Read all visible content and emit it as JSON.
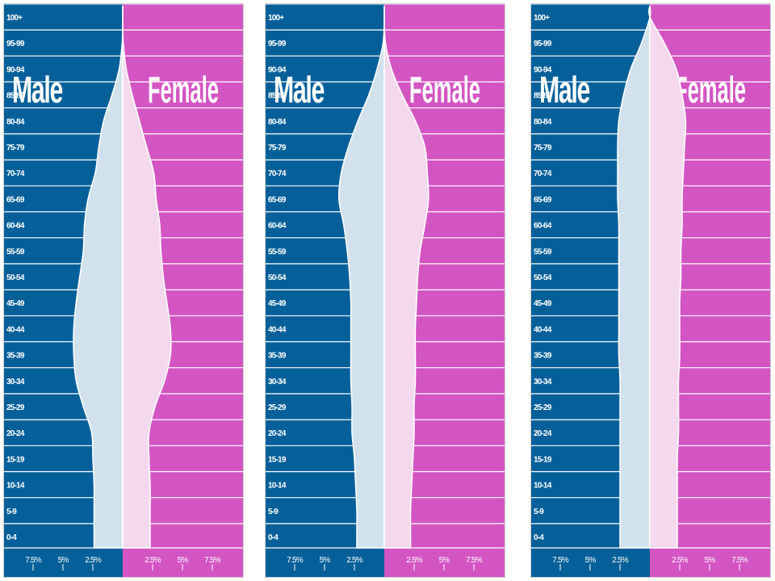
{
  "colors": {
    "male_bg": "#05609a",
    "female_bg": "#d355c2",
    "male_fill": "#d2e2ec",
    "female_fill": "#f4d9ee",
    "grid": "#ffffff",
    "label": "#ffffff"
  },
  "chart_data": [
    {
      "type": "area",
      "subtype": "population-pyramid",
      "side_labels": {
        "male": "Male",
        "female": "Female"
      },
      "age_groups": [
        "0-4",
        "5-9",
        "10-14",
        "15-19",
        "20-24",
        "25-29",
        "30-34",
        "35-39",
        "40-44",
        "45-49",
        "50-54",
        "55-59",
        "60-64",
        "65-69",
        "70-74",
        "75-79",
        "80-84",
        "85-89",
        "90-94",
        "95-99",
        "100+"
      ],
      "x_ticks": {
        "male": [
          "7.5%",
          "5%",
          "2.5%"
        ],
        "female": [
          "2.5%",
          "5%",
          "7.5%"
        ]
      },
      "xlim": [
        -9.7,
        9.7
      ],
      "series": [
        {
          "name": "Male",
          "values": [
            2.4,
            2.4,
            2.4,
            2.5,
            2.6,
            3.3,
            3.9,
            4.1,
            4.1,
            3.9,
            3.6,
            3.3,
            3.2,
            2.9,
            2.3,
            2.0,
            1.6,
            0.9,
            0.3,
            0.05,
            0.0
          ]
        },
        {
          "name": "Female",
          "values": [
            2.3,
            2.3,
            2.3,
            2.2,
            2.2,
            2.7,
            3.5,
            4.0,
            4.0,
            3.7,
            3.4,
            3.2,
            3.1,
            2.8,
            2.6,
            2.0,
            1.4,
            0.8,
            0.3,
            0.05,
            0.0
          ]
        }
      ]
    },
    {
      "type": "area",
      "subtype": "population-pyramid",
      "side_labels": {
        "male": "Male",
        "female": "Female"
      },
      "age_groups": [
        "0-4",
        "5-9",
        "10-14",
        "15-19",
        "20-24",
        "25-29",
        "30-34",
        "35-39",
        "40-44",
        "45-49",
        "50-54",
        "55-59",
        "60-64",
        "65-69",
        "70-74",
        "75-79",
        "80-84",
        "85-89",
        "90-94",
        "95-99",
        "100+"
      ],
      "x_ticks": {
        "male": [
          "7.5%",
          "5%",
          "2.5%"
        ],
        "female": [
          "2.5%",
          "5%",
          "7.5%"
        ]
      },
      "xlim": [
        -9.7,
        9.7
      ],
      "series": [
        {
          "name": "Male",
          "values": [
            2.3,
            2.3,
            2.4,
            2.5,
            2.7,
            2.7,
            2.8,
            2.8,
            2.8,
            2.8,
            2.9,
            3.1,
            3.4,
            3.8,
            3.6,
            3.0,
            2.2,
            1.3,
            0.6,
            0.1,
            0.0
          ]
        },
        {
          "name": "Female",
          "values": [
            2.2,
            2.2,
            2.3,
            2.4,
            2.5,
            2.5,
            2.6,
            2.6,
            2.6,
            2.7,
            2.8,
            3.0,
            3.4,
            3.7,
            3.6,
            3.4,
            2.6,
            1.5,
            0.6,
            0.1,
            0.0
          ]
        }
      ]
    },
    {
      "type": "area",
      "subtype": "population-pyramid",
      "side_labels": {
        "male": "Male",
        "female": "Female"
      },
      "age_groups": [
        "0-4",
        "5-9",
        "10-14",
        "15-19",
        "20-24",
        "25-29",
        "30-34",
        "35-39",
        "40-44",
        "45-49",
        "50-54",
        "55-59",
        "60-64",
        "65-69",
        "70-74",
        "75-79",
        "80-84",
        "85-89",
        "90-94",
        "95-99",
        "100+"
      ],
      "x_ticks": {
        "male": [
          "7.5%",
          "5%",
          "2.5%"
        ],
        "female": [
          "2.5%",
          "5%",
          "7.5%"
        ]
      },
      "xlim": [
        -9.7,
        9.7
      ],
      "series": [
        {
          "name": "Male",
          "values": [
            2.5,
            2.5,
            2.5,
            2.5,
            2.5,
            2.5,
            2.5,
            2.6,
            2.6,
            2.6,
            2.6,
            2.6,
            2.6,
            2.7,
            2.7,
            2.7,
            2.6,
            2.2,
            1.6,
            0.7,
            0.0
          ]
        },
        {
          "name": "Female",
          "values": [
            2.3,
            2.3,
            2.3,
            2.3,
            2.4,
            2.4,
            2.4,
            2.5,
            2.5,
            2.5,
            2.6,
            2.6,
            2.7,
            2.7,
            2.8,
            2.9,
            3.0,
            2.7,
            2.2,
            1.2,
            0.0
          ]
        }
      ]
    }
  ]
}
